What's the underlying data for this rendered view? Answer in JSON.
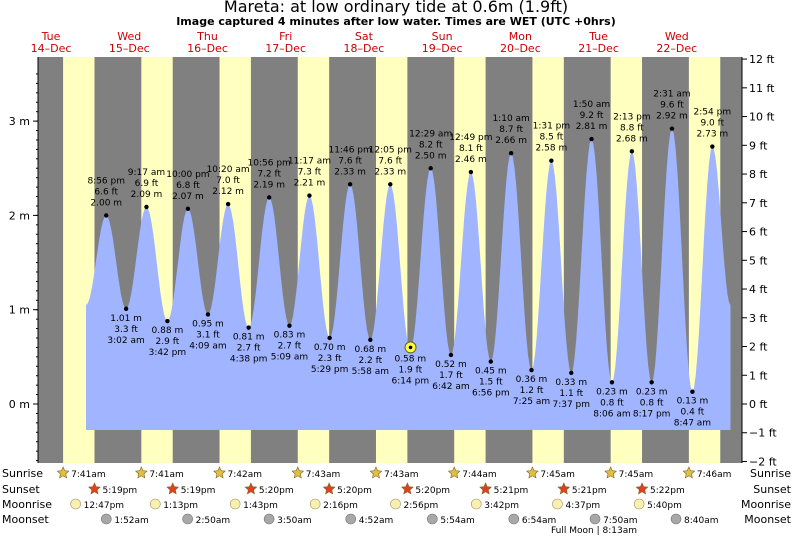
{
  "title": "Mareta: at low  ordinary tide at 0.6m (1.9ft)",
  "subtitle": "Image captured 4 minutes after low water. Times are WET (UTC +0hrs)",
  "colors": {
    "night": "#808080",
    "day": "#ffffc0",
    "water": "#a0b4ff",
    "day_label": "#cc0000",
    "sun_star": "#e0c040",
    "sunset_star": "#e04020",
    "moon": "#f8f0b0",
    "moonset": "#a8a8a8"
  },
  "chart_data": {
    "type": "area",
    "title": "Mareta: at low  ordinary tide at 0.6m (1.9ft)",
    "ylabel_left": "m",
    "ylabel_right": "ft",
    "ylim_m": [
      -0.6,
      3.67
    ],
    "left_ticks": [
      "0 m",
      "1 m",
      "2 m",
      "3 m"
    ],
    "right_ticks": [
      "−2 ft",
      "−1 ft",
      "0 ft",
      "1 ft",
      "2 ft",
      "3 ft",
      "4 ft",
      "5 ft",
      "6 ft",
      "7 ft",
      "8 ft",
      "9 ft",
      "10 ft",
      "11 ft",
      "12 ft"
    ],
    "days": [
      {
        "weekday": "Tue",
        "date": "14–Dec"
      },
      {
        "weekday": "Wed",
        "date": "15–Dec"
      },
      {
        "weekday": "Thu",
        "date": "16–Dec"
      },
      {
        "weekday": "Fri",
        "date": "17–Dec"
      },
      {
        "weekday": "Sat",
        "date": "18–Dec"
      },
      {
        "weekday": "Sun",
        "date": "19–Dec"
      },
      {
        "weekday": "Mon",
        "date": "20–Dec"
      },
      {
        "weekday": "Tue",
        "date": "21–Dec"
      },
      {
        "weekday": "Wed",
        "date": "22–Dec"
      }
    ],
    "extremes": [
      {
        "type": "high",
        "date": "14-Dec",
        "time": "8:56 pm",
        "ft": "6.6 ft",
        "m": 2.0,
        "m_label": "2.00 m"
      },
      {
        "type": "low",
        "date": "15-Dec",
        "time": "3:02 am",
        "ft": "3.3 ft",
        "m": 1.01,
        "m_label": "1.01 m"
      },
      {
        "type": "high",
        "date": "15-Dec",
        "time": "9:17 am",
        "ft": "6.9 ft",
        "m": 2.09,
        "m_label": "2.09 m"
      },
      {
        "type": "low",
        "date": "15-Dec",
        "time": "3:42 pm",
        "ft": "2.9 ft",
        "m": 0.88,
        "m_label": "0.88 m"
      },
      {
        "type": "high",
        "date": "15-Dec",
        "time": "10:00 pm",
        "ft": "6.8 ft",
        "m": 2.07,
        "m_label": "2.07 m"
      },
      {
        "type": "low",
        "date": "16-Dec",
        "time": "4:09 am",
        "ft": "3.1 ft",
        "m": 0.95,
        "m_label": "0.95 m"
      },
      {
        "type": "high",
        "date": "16-Dec",
        "time": "10:20 am",
        "ft": "7.0 ft",
        "m": 2.12,
        "m_label": "2.12 m"
      },
      {
        "type": "low",
        "date": "16-Dec",
        "time": "4:38 pm",
        "ft": "2.7 ft",
        "m": 0.81,
        "m_label": "0.81 m"
      },
      {
        "type": "high",
        "date": "16-Dec",
        "time": "10:56 pm",
        "ft": "7.2 ft",
        "m": 2.19,
        "m_label": "2.19 m"
      },
      {
        "type": "low",
        "date": "17-Dec",
        "time": "5:09 am",
        "ft": "2.7 ft",
        "m": 0.83,
        "m_label": "0.83 m"
      },
      {
        "type": "high",
        "date": "17-Dec",
        "time": "11:17 am",
        "ft": "7.3 ft",
        "m": 2.21,
        "m_label": "2.21 m"
      },
      {
        "type": "low",
        "date": "17-Dec",
        "time": "5:29 pm",
        "ft": "2.3 ft",
        "m": 0.7,
        "m_label": "0.70 m"
      },
      {
        "type": "high",
        "date": "17-Dec",
        "time": "11:46 pm",
        "ft": "7.6 ft",
        "m": 2.33,
        "m_label": "2.33 m"
      },
      {
        "type": "low",
        "date": "18-Dec",
        "time": "5:58 am",
        "ft": "2.2 ft",
        "m": 0.68,
        "m_label": "0.68 m"
      },
      {
        "type": "high",
        "date": "18-Dec",
        "time": "12:05 pm",
        "ft": "7.6 ft",
        "m": 2.33,
        "m_label": "2.33 m"
      },
      {
        "type": "low",
        "date": "18-Dec",
        "time": "6:14 pm",
        "ft": "1.9 ft",
        "m": 0.58,
        "m_label": "0.58 m"
      },
      {
        "type": "high",
        "date": "19-Dec",
        "time": "12:29 am",
        "ft": "8.2 ft",
        "m": 2.5,
        "m_label": "2.50 m"
      },
      {
        "type": "low",
        "date": "19-Dec",
        "time": "6:42 am",
        "ft": "1.7 ft",
        "m": 0.52,
        "m_label": "0.52 m"
      },
      {
        "type": "high",
        "date": "19-Dec",
        "time": "12:49 pm",
        "ft": "8.1 ft",
        "m": 2.46,
        "m_label": "2.46 m"
      },
      {
        "type": "low",
        "date": "19-Dec",
        "time": "6:56 pm",
        "ft": "1.5 ft",
        "m": 0.45,
        "m_label": "0.45 m"
      },
      {
        "type": "high",
        "date": "20-Dec",
        "time": "1:10 am",
        "ft": "8.7 ft",
        "m": 2.66,
        "m_label": "2.66 m"
      },
      {
        "type": "low",
        "date": "20-Dec",
        "time": "7:25 am",
        "ft": "1.2 ft",
        "m": 0.36,
        "m_label": "0.36 m"
      },
      {
        "type": "high",
        "date": "20-Dec",
        "time": "1:31 pm",
        "ft": "8.5 ft",
        "m": 2.58,
        "m_label": "2.58 m"
      },
      {
        "type": "low",
        "date": "20-Dec",
        "time": "7:37 pm",
        "ft": "1.1 ft",
        "m": 0.33,
        "m_label": "0.33 m"
      },
      {
        "type": "high",
        "date": "21-Dec",
        "time": "1:50 am",
        "ft": "9.2 ft",
        "m": 2.81,
        "m_label": "2.81 m"
      },
      {
        "type": "low",
        "date": "21-Dec",
        "time": "8:06 am",
        "ft": "0.8 ft",
        "m": 0.23,
        "m_label": "0.23 m"
      },
      {
        "type": "high",
        "date": "21-Dec",
        "time": "2:13 pm",
        "ft": "8.8 ft",
        "m": 2.68,
        "m_label": "2.68 m"
      },
      {
        "type": "low",
        "date": "21-Dec",
        "time": "8:17 pm",
        "ft": "0.8 ft",
        "m": 0.23,
        "m_label": "0.23 m"
      },
      {
        "type": "high",
        "date": "22-Dec",
        "time": "2:31 am",
        "ft": "9.6 ft",
        "m": 2.92,
        "m_label": "2.92 m"
      },
      {
        "type": "low",
        "date": "22-Dec",
        "time": "8:47 am",
        "ft": "0.4 ft",
        "m": 0.13,
        "m_label": "0.13 m"
      },
      {
        "type": "high",
        "date": "22-Dec",
        "time": "2:54 pm",
        "ft": "9.0 ft",
        "m": 2.73,
        "m_label": "2.73 m"
      }
    ],
    "current_marker": {
      "time": "6:18 pm",
      "date": "18-Dec",
      "m": 0.6
    }
  },
  "astro": {
    "labels": {
      "sunrise": "Sunrise",
      "sunset": "Sunset",
      "moonrise": "Moonrise",
      "moonset": "Moonset"
    },
    "sunrise": [
      "7:41am",
      "7:41am",
      "7:42am",
      "7:43am",
      "7:43am",
      "7:44am",
      "7:45am",
      "7:45am",
      "7:46am"
    ],
    "sunset": [
      "5:19pm",
      "5:19pm",
      "5:20pm",
      "5:20pm",
      "5:20pm",
      "5:21pm",
      "5:21pm",
      "5:22pm"
    ],
    "moonrise": [
      "12:47pm",
      "1:13pm",
      "1:43pm",
      "2:16pm",
      "2:56pm",
      "3:42pm",
      "4:37pm",
      "5:40pm"
    ],
    "moonset": [
      "1:52am",
      "2:50am",
      "3:50am",
      "4:52am",
      "5:54am",
      "6:54am",
      "7:50am",
      "8:40am"
    ],
    "moon_phase_note": "Full Moon | 8:13am"
  }
}
